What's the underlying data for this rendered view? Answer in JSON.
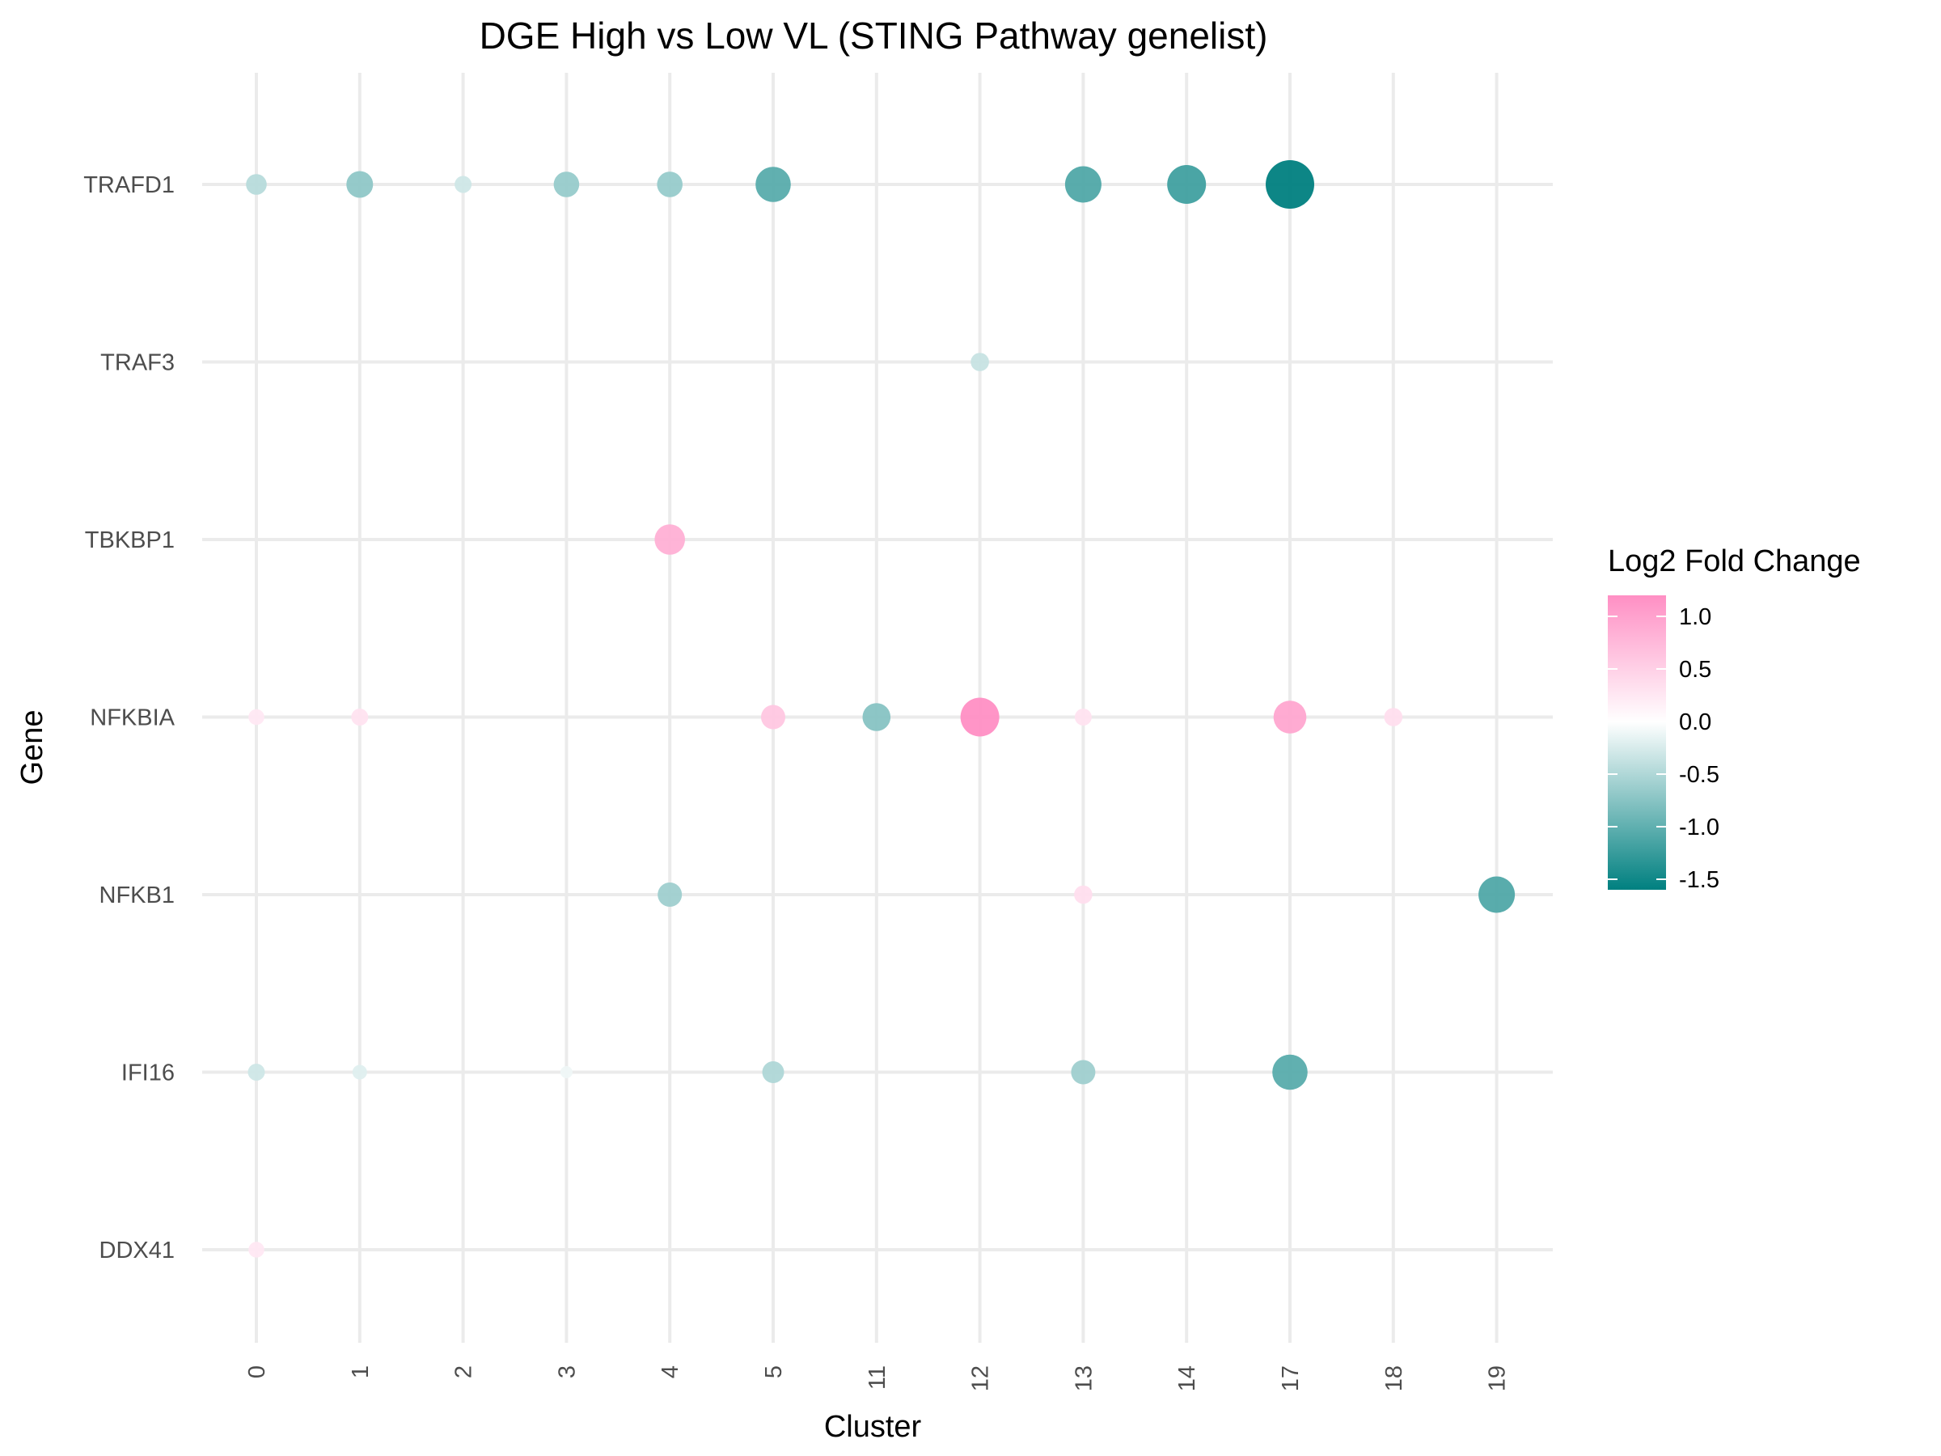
{
  "chart_data": {
    "type": "scatter",
    "title": "DGE High vs Low VL (STING Pathway genelist)",
    "xlabel": "Cluster",
    "ylabel": "Gene",
    "x_categories": [
      "0",
      "1",
      "2",
      "3",
      "4",
      "5",
      "11",
      "12",
      "13",
      "14",
      "17",
      "18",
      "19"
    ],
    "y_categories": [
      "DDX41",
      "IFI16",
      "NFKB1",
      "NFKBIA",
      "TBKBP1",
      "TRAF3",
      "TRAFD1"
    ],
    "color_legend": {
      "title": "Log2 Fold Change",
      "ticks": [
        1.0,
        0.5,
        0.0,
        -0.5,
        -1.0,
        -1.5
      ],
      "tick_labels": [
        "1.0",
        "0.5",
        "0.0",
        "-0.5",
        "-1.0",
        "-1.5"
      ],
      "range": [
        -1.6,
        1.2
      ],
      "low_color": "#008080",
      "mid_color": "#ffffff",
      "high_color": "#ff8fc4"
    },
    "grid": true,
    "legend_position": "right",
    "size_note": "point size increases with |log2 fold change|",
    "points": [
      {
        "cluster": "0",
        "gene": "TRAFD1",
        "log2fc": -0.45
      },
      {
        "cluster": "1",
        "gene": "TRAFD1",
        "log2fc": -0.7
      },
      {
        "cluster": "2",
        "gene": "TRAFD1",
        "log2fc": -0.3
      },
      {
        "cluster": "3",
        "gene": "TRAFD1",
        "log2fc": -0.65
      },
      {
        "cluster": "4",
        "gene": "TRAFD1",
        "log2fc": -0.65
      },
      {
        "cluster": "5",
        "gene": "TRAFD1",
        "log2fc": -1.05
      },
      {
        "cluster": "13",
        "gene": "TRAFD1",
        "log2fc": -1.1
      },
      {
        "cluster": "14",
        "gene": "TRAFD1",
        "log2fc": -1.2
      },
      {
        "cluster": "17",
        "gene": "TRAFD1",
        "log2fc": -1.6
      },
      {
        "cluster": "12",
        "gene": "TRAF3",
        "log2fc": -0.35
      },
      {
        "cluster": "4",
        "gene": "TBKBP1",
        "log2fc": 0.85
      },
      {
        "cluster": "0",
        "gene": "NFKBIA",
        "log2fc": 0.25
      },
      {
        "cluster": "1",
        "gene": "NFKBIA",
        "log2fc": 0.3
      },
      {
        "cluster": "5",
        "gene": "NFKBIA",
        "log2fc": 0.6
      },
      {
        "cluster": "11",
        "gene": "NFKBIA",
        "log2fc": -0.75
      },
      {
        "cluster": "12",
        "gene": "NFKBIA",
        "log2fc": 1.2
      },
      {
        "cluster": "13",
        "gene": "NFKBIA",
        "log2fc": 0.3
      },
      {
        "cluster": "17",
        "gene": "NFKBIA",
        "log2fc": 0.95
      },
      {
        "cluster": "18",
        "gene": "NFKBIA",
        "log2fc": 0.35
      },
      {
        "cluster": "4",
        "gene": "NFKB1",
        "log2fc": -0.6
      },
      {
        "cluster": "13",
        "gene": "NFKB1",
        "log2fc": 0.35
      },
      {
        "cluster": "19",
        "gene": "NFKB1",
        "log2fc": -1.1
      },
      {
        "cluster": "0",
        "gene": "IFI16",
        "log2fc": -0.3
      },
      {
        "cluster": "1",
        "gene": "IFI16",
        "log2fc": -0.2
      },
      {
        "cluster": "3",
        "gene": "IFI16",
        "log2fc": -0.1
      },
      {
        "cluster": "5",
        "gene": "IFI16",
        "log2fc": -0.5
      },
      {
        "cluster": "13",
        "gene": "IFI16",
        "log2fc": -0.6
      },
      {
        "cluster": "17",
        "gene": "IFI16",
        "log2fc": -1.05
      },
      {
        "cluster": "0",
        "gene": "DDX41",
        "log2fc": 0.25
      }
    ]
  }
}
